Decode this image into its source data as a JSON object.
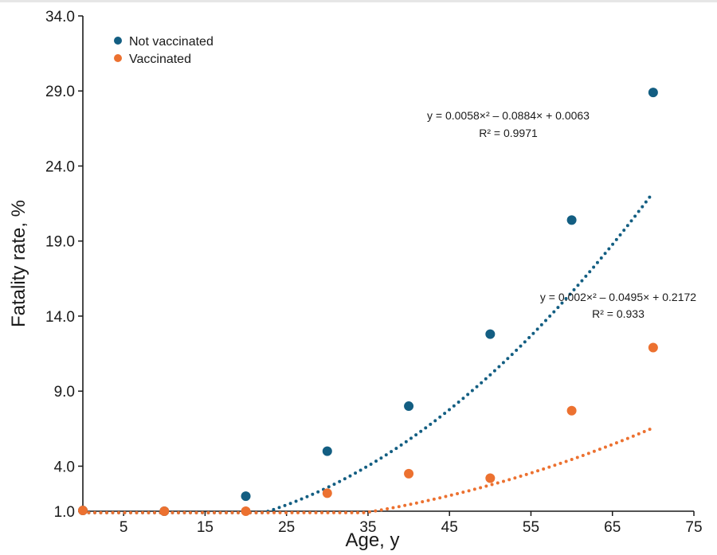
{
  "chart_data": {
    "type": "scatter",
    "title": "",
    "xlabel": "Age, y",
    "ylabel": "Fatality rate, %",
    "xlim": [
      0,
      75
    ],
    "ylim": [
      1.0,
      34.0
    ],
    "x_ticks": [
      "5",
      "15",
      "25",
      "35",
      "45",
      "55",
      "65",
      "75"
    ],
    "x_tick_values": [
      5,
      15,
      25,
      35,
      45,
      55,
      65,
      75
    ],
    "y_ticks": [
      "1.0",
      "4.0",
      "9.0",
      "14.0",
      "19.0",
      "24.0",
      "29.0",
      "34.0"
    ],
    "y_tick_values": [
      1.0,
      4.0,
      9.0,
      14.0,
      19.0,
      24.0,
      29.0,
      34.0
    ],
    "grid": false,
    "legend_position": "top-left",
    "series": [
      {
        "name": "Not vaccinated",
        "color": "#135e82",
        "x": [
          0,
          10,
          20,
          30,
          40,
          50,
          60,
          70
        ],
        "values": [
          1.05,
          1.0,
          2.0,
          5.0,
          8.0,
          12.8,
          20.4,
          28.9
        ],
        "trendline": {
          "type": "polynomial",
          "coefficients": [
            0.0058,
            -0.0884,
            0.0063
          ],
          "equation": "y = 0.0058×² – 0.0884× + 0.0063",
          "r2_label": "R² = 0.9971"
        }
      },
      {
        "name": "Vaccinated",
        "color": "#ec7130",
        "x": [
          0,
          10,
          20,
          30,
          40,
          50,
          60,
          70
        ],
        "values": [
          1.05,
          1.0,
          1.0,
          2.2,
          3.5,
          3.2,
          7.7,
          11.9
        ],
        "trendline": {
          "type": "polynomial",
          "coefficients": [
            0.002,
            -0.0495,
            0.2172
          ],
          "equation": "y = 0.002×² – 0.0495× + 0.2172",
          "r2_label": "R² = 0.933"
        }
      }
    ]
  }
}
